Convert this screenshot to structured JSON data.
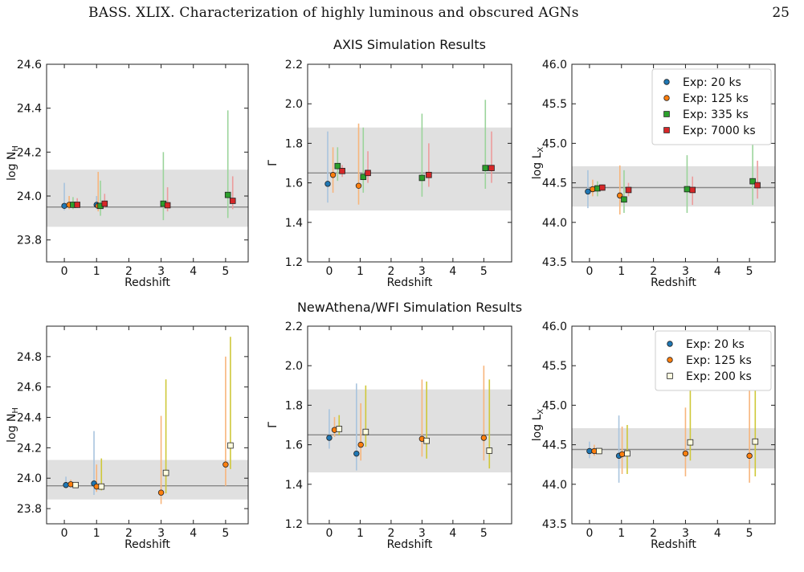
{
  "header": {
    "title": "BASS. XLIX. Characterization of highly luminous and obscured AGNs",
    "page_number": "25"
  },
  "colors": {
    "exp_20": "#1f77b4",
    "exp_125": "#ff7f0e",
    "exp_335": "#2ca02c",
    "exp_7000": "#d62728",
    "exp_200": "#fffde0",
    "exp_200_bar": "#c8c000",
    "band": "#e0e0e0",
    "ref_line": "#888888"
  },
  "chart_data": [
    {
      "type": "scatter",
      "row_title": "AXIS Simulation Results",
      "xlabel": "Redshift",
      "ylabel": "log N_H",
      "xlim": [
        -0.55,
        5.7
      ],
      "ylim": [
        23.7,
        24.6
      ],
      "xticks": [
        0,
        1,
        2,
        3,
        4,
        5
      ],
      "yticks": [
        23.8,
        24.0,
        24.2,
        24.4,
        24.6
      ],
      "ref_value": 23.95,
      "band": [
        23.86,
        24.12
      ],
      "legend": "none",
      "series": [
        {
          "name": "Exp: 20 ks",
          "color": "#1f77b4",
          "marker": "circle",
          "x": [
            0,
            1
          ],
          "y": [
            23.955,
            23.96
          ],
          "lo": [
            23.935,
            23.94
          ],
          "hi": [
            24.06,
            24.0
          ]
        },
        {
          "name": "Exp: 125 ks",
          "color": "#ff7f0e",
          "marker": "circle",
          "x": [
            0.15,
            1.05
          ],
          "y": [
            23.96,
            23.955
          ],
          "lo": [
            23.94,
            23.93
          ],
          "hi": [
            24.0,
            24.11
          ]
        },
        {
          "name": "Exp: 335 ks",
          "color": "#2ca02c",
          "marker": "square",
          "x": [
            0.27,
            1.12,
            3.07,
            5.07
          ],
          "y": [
            23.96,
            23.955,
            23.965,
            24.005
          ],
          "lo": [
            23.94,
            23.91,
            23.89,
            23.9
          ],
          "hi": [
            23.995,
            24.07,
            24.2,
            24.39
          ]
        },
        {
          "name": "Exp: 7000 ks",
          "color": "#d62728",
          "marker": "square",
          "x": [
            0.4,
            1.25,
            3.2,
            5.22
          ],
          "y": [
            23.96,
            23.965,
            23.958,
            23.978
          ],
          "lo": [
            23.945,
            23.945,
            23.93,
            23.94
          ],
          "hi": [
            23.99,
            24.01,
            24.04,
            24.09
          ]
        }
      ]
    },
    {
      "type": "scatter",
      "row_title": "AXIS Simulation Results",
      "xlabel": "Redshift",
      "ylabel": "Γ",
      "xlim": [
        -0.7,
        5.9
      ],
      "ylim": [
        1.2,
        2.2
      ],
      "xticks": [
        0,
        1,
        2,
        3,
        4,
        5
      ],
      "yticks": [
        1.2,
        1.4,
        1.6,
        1.8,
        2.0,
        2.2
      ],
      "ref_value": 1.65,
      "band": [
        1.46,
        1.88
      ],
      "legend": "none",
      "series": [
        {
          "name": "Exp: 20 ks",
          "color": "#1f77b4",
          "marker": "circle",
          "x": [
            -0.05
          ],
          "y": [
            1.595
          ],
          "lo": [
            1.5
          ],
          "hi": [
            1.86
          ]
        },
        {
          "name": "Exp: 125 ks",
          "color": "#ff7f0e",
          "marker": "circle",
          "x": [
            0.12,
            0.95
          ],
          "y": [
            1.64,
            1.585
          ],
          "lo": [
            1.55,
            1.49
          ],
          "hi": [
            1.78,
            1.9
          ]
        },
        {
          "name": "Exp: 335 ks",
          "color": "#2ca02c",
          "marker": "square",
          "x": [
            0.27,
            1.1,
            3.0,
            5.05
          ],
          "y": [
            1.685,
            1.63,
            1.625,
            1.675
          ],
          "lo": [
            1.61,
            1.55,
            1.53,
            1.57
          ],
          "hi": [
            1.78,
            1.88,
            1.95,
            2.02
          ]
        },
        {
          "name": "Exp: 7000 ks",
          "color": "#d62728",
          "marker": "square",
          "x": [
            0.42,
            1.25,
            3.22,
            5.25
          ],
          "y": [
            1.66,
            1.65,
            1.64,
            1.675
          ],
          "lo": [
            1.63,
            1.6,
            1.58,
            1.6
          ],
          "hi": [
            1.69,
            1.76,
            1.8,
            1.86
          ]
        }
      ]
    },
    {
      "type": "scatter",
      "row_title": "AXIS Simulation Results",
      "xlabel": "Redshift",
      "ylabel": "log L_X",
      "xlim": [
        -0.55,
        5.8
      ],
      "ylim": [
        43.5,
        46.0
      ],
      "xticks": [
        0,
        1,
        2,
        3,
        4,
        5
      ],
      "yticks": [
        43.5,
        44.0,
        44.5,
        45.0,
        45.5,
        46.0
      ],
      "ref_value": 44.44,
      "band": [
        44.2,
        44.71
      ],
      "legend": "top-right",
      "series": [
        {
          "name": "Exp: 20 ks",
          "color": "#1f77b4",
          "marker": "circle",
          "x": [
            -0.05
          ],
          "y": [
            44.39
          ],
          "lo": [
            44.18
          ],
          "hi": [
            44.66
          ]
        },
        {
          "name": "Exp: 125 ks",
          "color": "#ff7f0e",
          "marker": "circle",
          "x": [
            0.1,
            0.95
          ],
          "y": [
            44.42,
            44.34
          ],
          "lo": [
            44.33,
            44.1
          ],
          "hi": [
            44.54,
            44.72
          ]
        },
        {
          "name": "Exp: 335 ks",
          "color": "#2ca02c",
          "marker": "square",
          "x": [
            0.25,
            1.08,
            3.05,
            5.1
          ],
          "y": [
            44.43,
            44.29,
            44.42,
            44.52
          ],
          "lo": [
            44.33,
            44.12,
            44.12,
            44.22
          ],
          "hi": [
            44.52,
            44.66,
            44.85,
            45.0
          ]
        },
        {
          "name": "Exp: 7000 ks",
          "color": "#d62728",
          "marker": "square",
          "x": [
            0.4,
            1.22,
            3.22,
            5.25
          ],
          "y": [
            44.44,
            44.41,
            44.41,
            44.47
          ],
          "lo": [
            44.4,
            44.33,
            44.22,
            44.3
          ],
          "hi": [
            44.48,
            44.5,
            44.58,
            44.78
          ]
        }
      ]
    },
    {
      "type": "scatter",
      "row_title": "NewAthena/WFI Simulation Results",
      "xlabel": "Redshift",
      "ylabel": "log N_H",
      "xlim": [
        -0.55,
        5.7
      ],
      "ylim": [
        23.7,
        25.0
      ],
      "xticks": [
        0,
        1,
        2,
        3,
        4,
        5
      ],
      "yticks": [
        23.8,
        24.0,
        24.2,
        24.4,
        24.6,
        24.8
      ],
      "ref_value": 23.95,
      "band": [
        23.86,
        24.12
      ],
      "legend": "none",
      "series": [
        {
          "name": "Exp: 20 ks",
          "color": "#1f77b4",
          "marker": "circle",
          "x": [
            0.05,
            0.92
          ],
          "y": [
            23.955,
            23.965
          ],
          "lo": [
            23.935,
            23.89
          ],
          "hi": [
            24.01,
            24.31
          ]
        },
        {
          "name": "Exp: 125 ks",
          "color": "#ff7f0e",
          "marker": "circle",
          "x": [
            0.2,
            1.0,
            3.0,
            5.0
          ],
          "y": [
            23.96,
            23.945,
            23.905,
            24.09
          ],
          "lo": [
            23.94,
            23.91,
            23.83,
            23.95
          ],
          "hi": [
            23.99,
            24.09,
            24.41,
            24.8
          ]
        },
        {
          "name": "Exp: 200 ks",
          "color": "#fffde0",
          "marker": "square",
          "x": [
            0.35,
            1.15,
            3.15,
            5.15
          ],
          "y": [
            23.955,
            23.945,
            24.035,
            24.215
          ],
          "lo": [
            23.94,
            23.92,
            23.9,
            24.06
          ],
          "hi": [
            23.975,
            24.13,
            24.65,
            24.93
          ]
        }
      ]
    },
    {
      "type": "scatter",
      "row_title": "NewAthena/WFI Simulation Results",
      "xlabel": "Redshift",
      "ylabel": "Γ",
      "xlim": [
        -0.7,
        5.9
      ],
      "ylim": [
        1.2,
        2.2
      ],
      "xticks": [
        0,
        1,
        2,
        3,
        4,
        5
      ],
      "yticks": [
        1.2,
        1.4,
        1.6,
        1.8,
        2.0,
        2.2
      ],
      "ref_value": 1.65,
      "band": [
        1.46,
        1.88
      ],
      "legend": "none",
      "series": [
        {
          "name": "Exp: 20 ks",
          "color": "#1f77b4",
          "marker": "circle",
          "x": [
            0.0,
            0.88
          ],
          "y": [
            1.635,
            1.555
          ],
          "lo": [
            1.58,
            1.47
          ],
          "hi": [
            1.78,
            1.91
          ]
        },
        {
          "name": "Exp: 125 ks",
          "color": "#ff7f0e",
          "marker": "circle",
          "x": [
            0.17,
            1.02,
            3.0,
            5.0
          ],
          "y": [
            1.675,
            1.6,
            1.63,
            1.635
          ],
          "lo": [
            1.64,
            1.52,
            1.54,
            1.52
          ],
          "hi": [
            1.74,
            1.81,
            1.93,
            2.0
          ]
        },
        {
          "name": "Exp: 200 ks",
          "color": "#fffde0",
          "marker": "square",
          "x": [
            0.32,
            1.18,
            3.15,
            5.18
          ],
          "y": [
            1.68,
            1.665,
            1.62,
            1.57
          ],
          "lo": [
            1.65,
            1.59,
            1.53,
            1.48
          ],
          "hi": [
            1.75,
            1.9,
            1.92,
            1.93
          ]
        }
      ]
    },
    {
      "type": "scatter",
      "row_title": "NewAthena/WFI Simulation Results",
      "xlabel": "Redshift",
      "ylabel": "log L_X",
      "xlim": [
        -0.55,
        5.8
      ],
      "ylim": [
        43.5,
        46.0
      ],
      "xticks": [
        0,
        1,
        2,
        3,
        4,
        5
      ],
      "yticks": [
        43.5,
        44.0,
        44.5,
        45.0,
        45.5,
        46.0
      ],
      "ref_value": 44.44,
      "band": [
        44.2,
        44.71
      ],
      "legend": "top-right",
      "series": [
        {
          "name": "Exp: 20 ks",
          "color": "#1f77b4",
          "marker": "circle",
          "x": [
            0.0,
            0.92
          ],
          "y": [
            44.42,
            44.36
          ],
          "lo": [
            44.33,
            44.02
          ],
          "hi": [
            44.54,
            44.87
          ]
        },
        {
          "name": "Exp: 125 ks",
          "color": "#ff7f0e",
          "marker": "circle",
          "x": [
            0.15,
            1.02,
            3.0,
            5.0
          ],
          "y": [
            44.42,
            44.38,
            44.39,
            44.36
          ],
          "lo": [
            44.36,
            44.13,
            44.1,
            44.02
          ],
          "hi": [
            44.5,
            44.73,
            44.97,
            45.23
          ]
        },
        {
          "name": "Exp: 200 ks",
          "color": "#fffde0",
          "marker": "square",
          "x": [
            0.3,
            1.18,
            3.15,
            5.18
          ],
          "y": [
            44.42,
            44.39,
            44.53,
            44.54
          ],
          "lo": [
            44.4,
            44.13,
            44.3,
            44.1
          ],
          "hi": [
            44.45,
            44.75,
            45.2,
            45.23
          ]
        }
      ]
    }
  ]
}
